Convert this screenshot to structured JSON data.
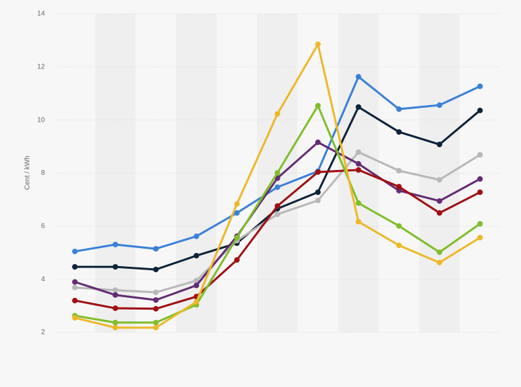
{
  "chart_data": {
    "type": "line",
    "ylabel": "Cent / kWh",
    "categories": [
      null,
      null,
      null,
      null,
      null,
      null,
      null,
      null,
      null,
      null,
      null
    ],
    "series": [
      {
        "color": "#3a80d9",
        "values": [
          5.05,
          5.31,
          5.15,
          5.62,
          6.5,
          7.47,
          8.07,
          11.63,
          10.41,
          10.56,
          11.27
        ]
      },
      {
        "color": "#0d233a",
        "values": [
          4.47,
          4.47,
          4.37,
          4.89,
          5.36,
          6.66,
          7.28,
          10.49,
          9.55,
          9.08,
          10.36
        ]
      },
      {
        "color": "#b8b8b8",
        "values": [
          3.69,
          3.59,
          3.51,
          3.95,
          5.46,
          6.45,
          6.97,
          8.79,
          8.09,
          7.75,
          8.69
        ]
      },
      {
        "color": "#642b73",
        "values": [
          3.9,
          3.41,
          3.22,
          3.77,
          5.62,
          7.81,
          9.16,
          8.35,
          7.34,
          6.95,
          7.78
        ]
      },
      {
        "color": "#a00f12",
        "values": [
          3.2,
          2.91,
          2.89,
          3.35,
          4.73,
          6.76,
          8.04,
          8.12,
          7.49,
          6.5,
          7.28
        ]
      },
      {
        "color": "#7fbe2a",
        "values": [
          2.63,
          2.37,
          2.37,
          3.04,
          5.57,
          8.01,
          10.54,
          6.87,
          6.01,
          5.02,
          6.09
        ]
      },
      {
        "color": "#edb828",
        "values": [
          2.55,
          2.18,
          2.18,
          3.15,
          6.84,
          10.23,
          12.85,
          6.17,
          5.28,
          4.63,
          5.57
        ]
      }
    ],
    "ylim": [
      2,
      14
    ],
    "yticks": [
      2,
      4,
      6,
      8,
      10,
      12,
      14
    ],
    "grid": true
  }
}
